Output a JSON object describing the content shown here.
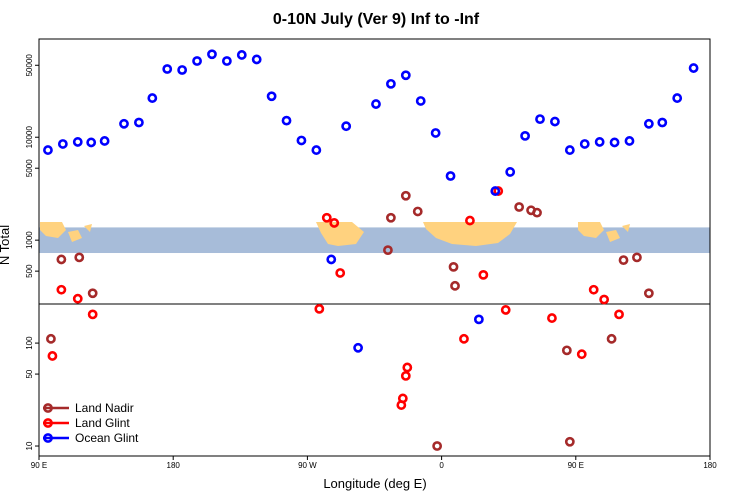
{
  "chart_data": {
    "type": "scatter",
    "title": "0-10N July (Ver 9)   Inf to -Inf",
    "xlabel": "Longitude (deg E)",
    "ylabel": "N Total",
    "x_ticks": [
      {
        "value": 90,
        "label": "90 E"
      },
      {
        "value": 180,
        "label": "180"
      },
      {
        "value": 270,
        "label": "90 W"
      },
      {
        "value": 360,
        "label": "0"
      },
      {
        "value": 450,
        "label": "90 E"
      },
      {
        "value": 540,
        "label": "180"
      }
    ],
    "xlim": [
      90,
      540
    ],
    "y_scale": "log",
    "y_ticks": [
      {
        "value": 10,
        "label": "10"
      },
      {
        "value": 50,
        "label": "50"
      },
      {
        "value": 100,
        "label": "100"
      },
      {
        "value": 500,
        "label": "500"
      },
      {
        "value": 1000,
        "label": "1000"
      },
      {
        "value": 5000,
        "label": "5000"
      },
      {
        "value": 10000,
        "label": "10000"
      },
      {
        "value": 50000,
        "label": "50000"
      }
    ],
    "ylim": [
      8,
      90000
    ],
    "reference_line_y": 240,
    "land_band": {
      "y_low": 750,
      "y_high": 1330
    },
    "series": [
      {
        "name": "Land Nadir",
        "color": "#a52a2a",
        "points": [
          [
            98,
            110
          ],
          [
            105,
            650
          ],
          [
            117,
            680
          ],
          [
            126,
            305
          ],
          [
            324,
            800
          ],
          [
            326,
            1650
          ],
          [
            336,
            2700
          ],
          [
            344,
            1900
          ],
          [
            357,
            10
          ],
          [
            369,
            360
          ],
          [
            368,
            550
          ],
          [
            412,
            2100
          ],
          [
            420,
            1950
          ],
          [
            424,
            1850
          ],
          [
            444,
            85
          ],
          [
            446,
            11
          ],
          [
            474,
            110
          ],
          [
            482,
            640
          ],
          [
            491,
            680
          ],
          [
            499,
            305
          ]
        ]
      },
      {
        "name": "Land Glint",
        "color": "#ff0000",
        "points": [
          [
            99,
            75
          ],
          [
            105,
            330
          ],
          [
            116,
            270
          ],
          [
            126,
            190
          ],
          [
            278,
            215
          ],
          [
            283,
            1650
          ],
          [
            288,
            1470
          ],
          [
            292,
            480
          ],
          [
            333,
            25
          ],
          [
            334,
            29
          ],
          [
            336,
            48
          ],
          [
            337,
            58
          ],
          [
            375,
            110
          ],
          [
            379,
            1550
          ],
          [
            388,
            460
          ],
          [
            398,
            3000
          ],
          [
            403,
            210
          ],
          [
            434,
            175
          ],
          [
            454,
            78
          ],
          [
            462,
            330
          ],
          [
            469,
            265
          ],
          [
            479,
            190
          ]
        ]
      },
      {
        "name": "Ocean Glint",
        "color": "#0000ff",
        "points": [
          [
            96,
            7500
          ],
          [
            106,
            8600
          ],
          [
            116,
            9000
          ],
          [
            125,
            8900
          ],
          [
            134,
            9200
          ],
          [
            147,
            13500
          ],
          [
            157,
            13900
          ],
          [
            166,
            24000
          ],
          [
            176,
            46000
          ],
          [
            186,
            45000
          ],
          [
            196,
            55000
          ],
          [
            206,
            64000
          ],
          [
            216,
            55000
          ],
          [
            226,
            63000
          ],
          [
            236,
            57000
          ],
          [
            246,
            25000
          ],
          [
            256,
            14500
          ],
          [
            266,
            9300
          ],
          [
            276,
            7500
          ],
          [
            286,
            650
          ],
          [
            296,
            12800
          ],
          [
            304,
            90
          ],
          [
            316,
            21000
          ],
          [
            326,
            33000
          ],
          [
            336,
            40000
          ],
          [
            346,
            22500
          ],
          [
            356,
            11000
          ],
          [
            366,
            4200
          ],
          [
            385,
            170
          ],
          [
            396,
            3000
          ],
          [
            406,
            4600
          ],
          [
            416,
            10300
          ],
          [
            426,
            15000
          ],
          [
            436,
            14200
          ],
          [
            446,
            7500
          ],
          [
            456,
            8600
          ],
          [
            466,
            9000
          ],
          [
            476,
            8900
          ],
          [
            486,
            9200
          ],
          [
            499,
            13500
          ],
          [
            508,
            13900
          ],
          [
            518,
            24000
          ],
          [
            529,
            47000
          ]
        ]
      }
    ],
    "legend_position": "bottom-left"
  }
}
